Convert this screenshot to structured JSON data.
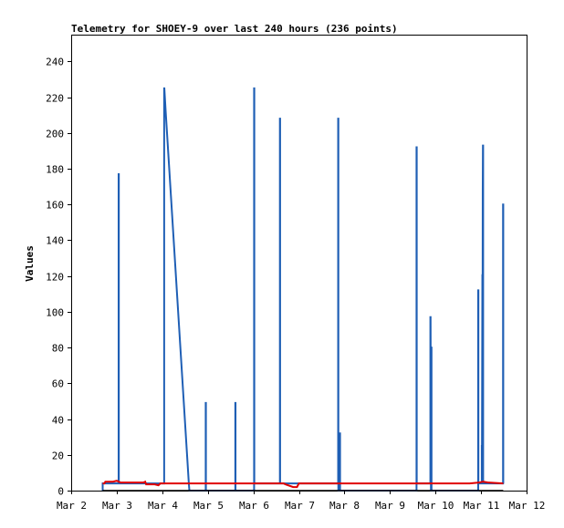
{
  "chart_data": {
    "type": "line",
    "title": "Telemetry for SHOEY-9 over last 240 hours (236 points)",
    "xlabel": "",
    "ylabel": "Values",
    "ylim": [
      0,
      255
    ],
    "xlim": [
      0,
      240
    ],
    "grid": false,
    "x_ticks": [
      {
        "label": "Mar 2",
        "x": 0
      },
      {
        "label": "Mar 3",
        "x": 24
      },
      {
        "label": "Mar 4",
        "x": 48
      },
      {
        "label": "Mar 5",
        "x": 72
      },
      {
        "label": "Mar 6",
        "x": 96
      },
      {
        "label": "Mar 7",
        "x": 120
      },
      {
        "label": "Mar 8",
        "x": 144
      },
      {
        "label": "Mar 9",
        "x": 168
      },
      {
        "label": "Mar 10",
        "x": 192
      },
      {
        "label": "Mar 11",
        "x": 216
      },
      {
        "label": "Mar 12",
        "x": 240
      }
    ],
    "y_ticks": [
      0,
      20,
      40,
      60,
      80,
      100,
      120,
      140,
      160,
      180,
      200,
      220,
      240
    ],
    "series": [
      {
        "color": "#1f5fb5",
        "points": [
          [
            16.6,
            0
          ],
          [
            16.6,
            4
          ],
          [
            25.0,
            4
          ],
          [
            25.0,
            177
          ],
          [
            25.1,
            177
          ],
          [
            25.1,
            4
          ],
          [
            49.0,
            4
          ],
          [
            49.0,
            225
          ],
          [
            49.1,
            225
          ],
          [
            49.8,
            212
          ],
          [
            62.0,
            4
          ],
          [
            62.3,
            0
          ],
          [
            70.9,
            0
          ],
          [
            70.9,
            49
          ],
          [
            71.0,
            49
          ],
          [
            71.0,
            0
          ],
          [
            86.5,
            0
          ],
          [
            86.5,
            49
          ],
          [
            86.6,
            49
          ],
          [
            86.6,
            0
          ],
          [
            96.4,
            0
          ],
          [
            96.4,
            225
          ],
          [
            96.5,
            225
          ],
          [
            96.5,
            4
          ],
          [
            110.0,
            4
          ],
          [
            110.0,
            208
          ],
          [
            110.1,
            208
          ],
          [
            110.1,
            4
          ],
          [
            140.7,
            4
          ],
          [
            140.7,
            208
          ],
          [
            140.8,
            208
          ],
          [
            140.8,
            0
          ],
          [
            141.6,
            0
          ],
          [
            141.6,
            32
          ],
          [
            141.7,
            32
          ],
          [
            141.7,
            0
          ],
          [
            182.0,
            0
          ],
          [
            182.0,
            192
          ],
          [
            182.1,
            192
          ],
          [
            182.1,
            4
          ],
          [
            189.3,
            4
          ],
          [
            189.3,
            97
          ],
          [
            189.4,
            97
          ],
          [
            189.6,
            0
          ],
          [
            189.8,
            0
          ],
          [
            189.8,
            80
          ],
          [
            189.9,
            80
          ],
          [
            189.9,
            0
          ],
          [
            214.5,
            0
          ],
          [
            214.5,
            112
          ],
          [
            214.6,
            112
          ],
          [
            214.6,
            4
          ],
          [
            216.4,
            4
          ],
          [
            216.4,
            25
          ],
          [
            216.5,
            25
          ],
          [
            216.6,
            72
          ],
          [
            216.7,
            121
          ],
          [
            216.8,
            75
          ],
          [
            216.9,
            168
          ],
          [
            217.0,
            193
          ],
          [
            217.1,
            193
          ],
          [
            217.1,
            4
          ],
          [
            227.6,
            4
          ],
          [
            227.6,
            160
          ],
          [
            227.7,
            160
          ],
          [
            227.7,
            4
          ]
        ]
      },
      {
        "color": "#e00000",
        "points": [
          [
            16.6,
            4
          ],
          [
            17.5,
            4
          ],
          [
            18.0,
            5
          ],
          [
            20.0,
            5
          ],
          [
            22.0,
            5
          ],
          [
            24.0,
            5.5
          ],
          [
            26.0,
            4.5
          ],
          [
            30.0,
            4.5
          ],
          [
            38.0,
            4.5
          ],
          [
            39.0,
            5
          ],
          [
            39.5,
            3.5
          ],
          [
            42.0,
            3.5
          ],
          [
            44.0,
            3.5
          ],
          [
            46.0,
            3
          ],
          [
            47.0,
            4
          ],
          [
            55.0,
            4
          ],
          [
            65.0,
            4
          ],
          [
            80.0,
            4
          ],
          [
            100.0,
            4
          ],
          [
            110.0,
            4
          ],
          [
            112.0,
            4
          ],
          [
            113.0,
            3.5
          ],
          [
            117.0,
            2
          ],
          [
            119.0,
            2
          ],
          [
            120.0,
            4
          ],
          [
            130.0,
            4
          ],
          [
            150.0,
            4
          ],
          [
            170.0,
            4
          ],
          [
            190.0,
            4
          ],
          [
            200.0,
            4
          ],
          [
            210.0,
            4
          ],
          [
            215.0,
            4.5
          ],
          [
            217.0,
            5
          ],
          [
            220.0,
            4.5
          ],
          [
            227.7,
            4
          ]
        ]
      },
      {
        "color": "#000000",
        "points": [
          [
            16.6,
            0
          ],
          [
            227.7,
            0
          ]
        ]
      }
    ]
  }
}
